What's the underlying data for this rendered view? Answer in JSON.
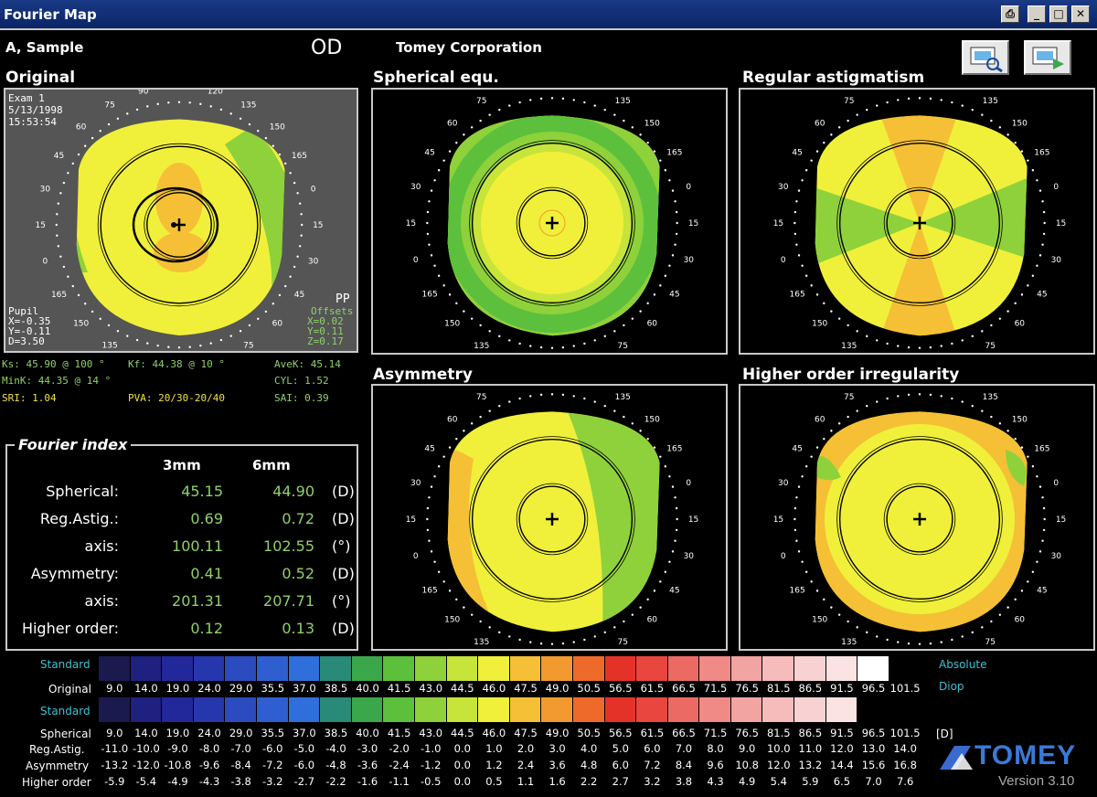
{
  "window": {
    "title": "Fourier Map",
    "print_icon": "printer-icon",
    "min_icon": "minimize-icon",
    "max_icon": "maximize-icon",
    "close_icon": "close-icon"
  },
  "header": {
    "patient": "A, Sample",
    "eye": "OD",
    "company": "Tomey Corporation"
  },
  "toolbar": {
    "buttons": [
      "scan-view-icon",
      "export-icon"
    ]
  },
  "maps": {
    "original": {
      "title": "Original",
      "exam": "Exam 1",
      "date": "5/13/1998",
      "time": "15:53:54",
      "pp": "PP",
      "pupil": [
        "Pupil",
        "X=-0.35",
        "Y=-0.11",
        "D=3.50"
      ],
      "offsets": [
        "Offsets",
        "X=0.02",
        "Y=0.11",
        "Z=0.17"
      ]
    },
    "spherical": {
      "title": "Spherical equ."
    },
    "regular": {
      "title": "Regular astigmatism"
    },
    "asymmetry": {
      "title": "Asymmetry"
    },
    "higher": {
      "title": "Higher order irregularity"
    }
  },
  "axis_labels": [
    "105",
    "90",
    "75",
    "60",
    "45",
    "30",
    "15",
    "0",
    "165",
    "150",
    "135",
    "120",
    "105",
    "90",
    "75",
    "60",
    "45",
    "30",
    "15",
    "0",
    "165",
    "150",
    "135",
    "120"
  ],
  "indices": {
    "ks": "Ks: 45.90 @ 100 °",
    "kf": "Kf: 44.38 @ 10 °",
    "avek": "AveK: 45.14",
    "mink": "MinK: 44.35 @ 14 °",
    "cyl": "CYL: 1.52",
    "sri": "SRI: 1.04",
    "pva": "PVA: 20/30-20/40",
    "sai": "SAI: 0.39"
  },
  "fourier_index": {
    "legend": "Fourier index",
    "col_3mm": "3mm",
    "col_6mm": "6mm",
    "rows": [
      {
        "label": "Spherical:",
        "v3": "45.15",
        "v6": "44.90",
        "unit": "(D)"
      },
      {
        "label": "Reg.Astig.:",
        "v3": "0.69",
        "v6": "0.72",
        "unit": "(D)"
      },
      {
        "label": "axis:",
        "v3": "100.11",
        "v6": "102.55",
        "unit": "(°)"
      },
      {
        "label": "Asymmetry:",
        "v3": "0.41",
        "v6": "0.52",
        "unit": "(D)"
      },
      {
        "label": "axis:",
        "v3": "201.31",
        "v6": "207.71",
        "unit": "(°)"
      },
      {
        "label": "Higher order:",
        "v3": "0.12",
        "v6": "0.13",
        "unit": "(D)"
      }
    ]
  },
  "scale": {
    "standard1": "Standard",
    "standard2": "Standard",
    "absolute": "Absolute",
    "diop": "Diop",
    "unit": "[D]",
    "colors": [
      "#1a1a4e",
      "#1f2080",
      "#22279a",
      "#2636ad",
      "#2c4bbf",
      "#2e5ed0",
      "#2f6fdb",
      "#2a8a7a",
      "#3aa84a",
      "#5cc03c",
      "#8fd13a",
      "#c7e43a",
      "#f0f03a",
      "#f5c035",
      "#f29a30",
      "#ee6a2a",
      "#e53228",
      "#e8463e",
      "#ec6a64",
      "#f08a86",
      "#f2a4a2",
      "#f5bcbb",
      "#f8d2d2",
      "#fbe3e3",
      "#ffffff"
    ],
    "colors2": [
      "#1a1a4e",
      "#1f2080",
      "#22279a",
      "#2636ad",
      "#2c4bbf",
      "#2e5ed0",
      "#2f6fdb",
      "#2a8a7a",
      "#3aa84a",
      "#5cc03c",
      "#8fd13a",
      "#c7e43a",
      "#f0f03a",
      "#f5c035",
      "#f29a30",
      "#ee6a2a",
      "#e53228",
      "#e8463e",
      "#ec6a64",
      "#f08a86",
      "#f2a4a2",
      "#f5bcbb",
      "#f8d2d2",
      "#fbe3e3",
      "#ffffff"
    ],
    "original_label": "Original",
    "original_vals": [
      "9.0",
      "14.0",
      "19.0",
      "24.0",
      "29.0",
      "35.5",
      "37.0",
      "38.5",
      "40.0",
      "41.5",
      "43.0",
      "44.5",
      "46.0",
      "47.5",
      "49.0",
      "50.5",
      "56.5",
      "61.5",
      "66.5",
      "71.5",
      "76.5",
      "81.5",
      "86.5",
      "91.5",
      "96.5",
      "101.5"
    ],
    "spherical_label": "Spherical",
    "spherical_vals": [
      "9.0",
      "14.0",
      "19.0",
      "24.0",
      "29.0",
      "35.5",
      "37.0",
      "38.5",
      "40.0",
      "41.5",
      "43.0",
      "44.5",
      "46.0",
      "47.5",
      "49.0",
      "50.5",
      "56.5",
      "61.5",
      "66.5",
      "71.5",
      "76.5",
      "81.5",
      "86.5",
      "91.5",
      "96.5",
      "101.5"
    ],
    "regastig_label": "Reg.Astig.",
    "regastig_vals": [
      "-11.0",
      "-10.0",
      "-9.0",
      "-8.0",
      "-7.0",
      "-6.0",
      "-5.0",
      "-4.0",
      "-3.0",
      "-2.0",
      "-1.0",
      "0.0",
      "1.0",
      "2.0",
      "3.0",
      "4.0",
      "5.0",
      "6.0",
      "7.0",
      "8.0",
      "9.0",
      "10.0",
      "11.0",
      "12.0",
      "13.0",
      "14.0"
    ],
    "asym_label": "Asymmetry",
    "asym_vals": [
      "-13.2",
      "-12.0",
      "-10.8",
      "-9.6",
      "-8.4",
      "-7.2",
      "-6.0",
      "-4.8",
      "-3.6",
      "-2.4",
      "-1.2",
      "0.0",
      "1.2",
      "2.4",
      "3.6",
      "4.8",
      "6.0",
      "7.2",
      "8.4",
      "9.6",
      "10.8",
      "12.0",
      "13.2",
      "14.4",
      "15.6",
      "16.8"
    ],
    "higher_label": "Higher order",
    "higher_vals": [
      "-5.9",
      "-5.4",
      "-4.9",
      "-4.3",
      "-3.8",
      "-3.2",
      "-2.7",
      "-2.2",
      "-1.6",
      "-1.1",
      "-0.5",
      "0.0",
      "0.5",
      "1.1",
      "1.6",
      "2.2",
      "2.7",
      "3.2",
      "3.8",
      "4.3",
      "4.9",
      "5.4",
      "5.9",
      "6.5",
      "7.0",
      "7.6"
    ]
  },
  "logo": {
    "name": "TOMEY",
    "version": "Version 3.10"
  }
}
